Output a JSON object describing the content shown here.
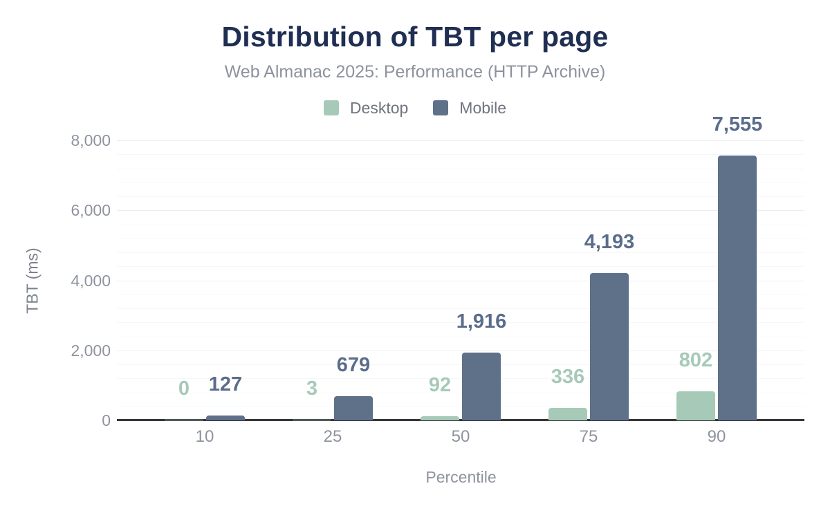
{
  "header": {
    "title": "Distribution of TBT per page",
    "subtitle": "Web Almanac 2025: Performance (HTTP Archive)"
  },
  "chart_data": {
    "type": "bar",
    "title": "Distribution of TBT per page",
    "subtitle": "Web Almanac 2025: Performance (HTTP Archive)",
    "categories": [
      "10",
      "25",
      "50",
      "75",
      "90"
    ],
    "series": [
      {
        "name": "Desktop",
        "color": "#a7cab8",
        "label_color": "#a7cab8",
        "values": [
          0,
          3,
          92,
          336,
          802
        ]
      },
      {
        "name": "Mobile",
        "color": "#5f7089",
        "label_color": "#5b6d8b",
        "values": [
          127,
          679,
          1916,
          4193,
          7555
        ]
      }
    ],
    "xlabel": "Percentile",
    "ylabel": "TBT (ms)",
    "ylim": [
      0,
      8000
    ],
    "y_major_ticks": [
      0,
      2000,
      4000,
      6000,
      8000
    ],
    "y_tick_labels": [
      "0",
      "2,000",
      "4,000",
      "6,000",
      "8,000"
    ],
    "y_minor_step": 400,
    "grid": true,
    "legend_position": "top",
    "data_labels_shown": true,
    "title_color": "#1f2e52",
    "subtitle_color": "#8d929d",
    "axis_text_color": "#8e939e",
    "axis_line_color": "#35383c",
    "background_color": "#ffffff"
  }
}
